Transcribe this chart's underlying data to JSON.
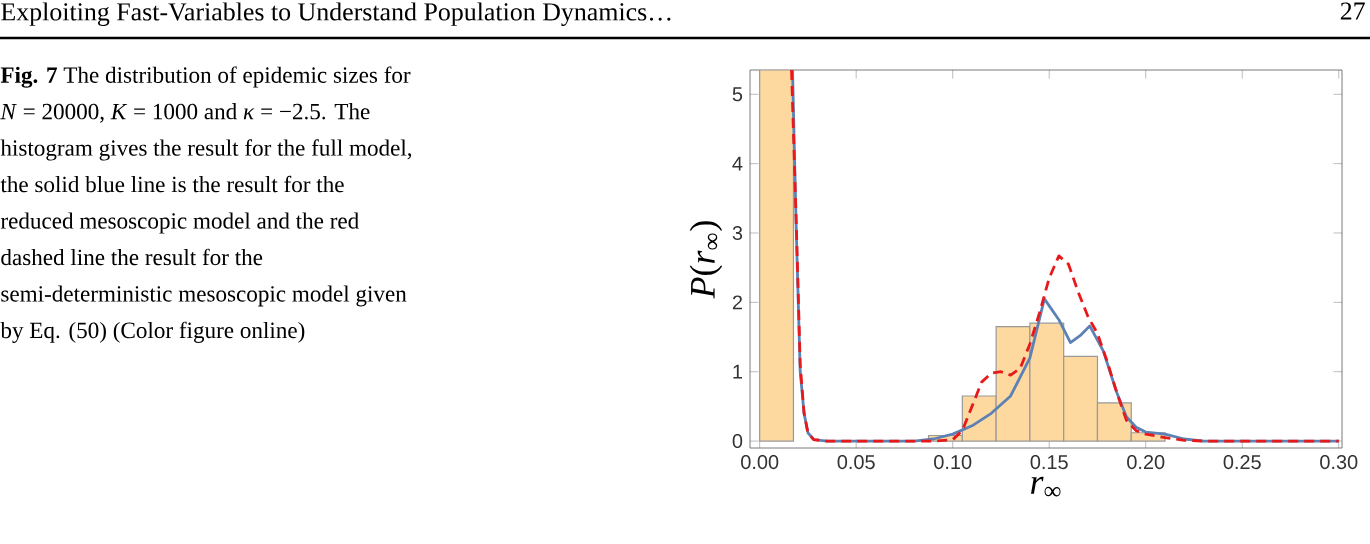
{
  "chart_data": {
    "type": "histogram",
    "bins": [
      0,
      0.0175,
      0.035,
      0.0525,
      0.07,
      0.0875,
      0.105,
      0.1225,
      0.14,
      0.1575,
      0.175,
      0.1925,
      0.21
    ],
    "values": [
      5.35,
      0,
      0,
      0,
      0,
      0.08,
      0.65,
      1.65,
      1.7,
      1.22,
      0.55,
      0.12
    ],
    "color": "#fdd9a0",
    "series": [
      {
        "type": "line",
        "color": "#5e81b5",
        "line_style": "solid",
        "x": [
          0.017,
          0.019,
          0.021,
          0.023,
          0.025,
          0.028,
          0.035,
          0.08,
          0.09,
          0.1,
          0.11,
          0.12,
          0.13,
          0.14,
          0.1475,
          0.155,
          0.161,
          0.166,
          0.171,
          0.178,
          0.185,
          0.19,
          0.195,
          0.2,
          0.21,
          0.22,
          0.23,
          0.3
        ],
        "values": [
          5.35,
          3,
          1,
          0.4,
          0.12,
          0.02,
          0,
          0,
          0.03,
          0.1,
          0.22,
          0.4,
          0.65,
          1.2,
          2.05,
          1.75,
          1.42,
          1.52,
          1.66,
          1.3,
          0.7,
          0.35,
          0.2,
          0.13,
          0.1,
          0.03,
          0,
          0
        ]
      },
      {
        "type": "line",
        "color": "#e8191a",
        "line_style": "dashed",
        "x": [
          0.0165,
          0.019,
          0.021,
          0.023,
          0.025,
          0.028,
          0.035,
          0.09,
          0.1,
          0.105,
          0.11,
          0.115,
          0.12,
          0.125,
          0.13,
          0.135,
          0.14,
          0.145,
          0.15,
          0.155,
          0.16,
          0.165,
          0.17,
          0.175,
          0.18,
          0.185,
          0.19,
          0.195,
          0.2,
          0.21,
          0.22,
          0.23,
          0.3
        ],
        "values": [
          5.35,
          3.1,
          1.1,
          0.4,
          0.12,
          0.02,
          0,
          0,
          0.02,
          0.15,
          0.5,
          0.85,
          0.98,
          1.0,
          0.95,
          1.05,
          1.4,
          1.85,
          2.35,
          2.67,
          2.55,
          2.15,
          1.8,
          1.55,
          1.15,
          0.7,
          0.3,
          0.15,
          0.1,
          0.05,
          0.01,
          0,
          0
        ]
      }
    ],
    "xlim": [
      -0.005,
      0.3017
    ],
    "ylim": [
      -0.1,
      5.35
    ],
    "xticks": [
      {
        "value": 0,
        "label": "0.00"
      },
      0.05,
      {
        "value": 0.1,
        "label": "0.10"
      },
      0.15,
      {
        "value": 0.2,
        "label": "0.20"
      },
      0.25,
      {
        "value": 0.3,
        "label": "0.30"
      }
    ],
    "yticks": [
      0,
      1,
      2,
      3,
      4,
      5
    ],
    "xlabel": "*r*$_{∞}$",
    "ylabel": "*P*(*r*$_{∞}$)",
    "annotations": [
      "Exploiting Fast-Variables to Understand Population Dynamics…",
      "27",
      "**Fig. 7** The distribution of epidemic sizes for *N* = 20000, *K* = 1000 and *κ* = −2.5. The histogram gives the result for the full model, the solid blue line is the result for the reduced mesoscopic model and the red dashed line the result for the semi-deterministic mesoscopic model given by Eq. (50) (Color figure online)"
    ]
  }
}
